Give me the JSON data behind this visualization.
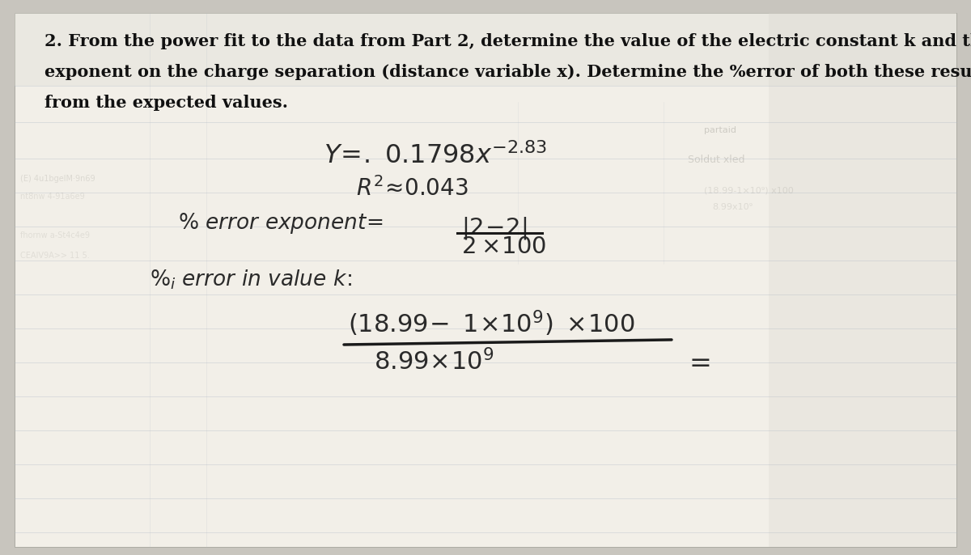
{
  "bg_color": "#c8c5be",
  "paper_color": "#e8e5de",
  "paper_inner": "#f2efe8",
  "grid_line_color": "#b0b8c5",
  "grid_line_alpha": 0.4,
  "text_color": "#111111",
  "hand_color": "#2a2a2a",
  "line_color": "#1a1a1a",
  "question_text_line1": "2. From the power fit to the data from Part 2, determine the value of the electric constant k and the",
  "question_text_line2": "exponent on the charge separation (distance variable x). Determine the %error of both these results",
  "question_text_line3": "from the expected values.",
  "question_fontsize": 15,
  "eq_fontsize": 21,
  "hand_fontsize": 20
}
